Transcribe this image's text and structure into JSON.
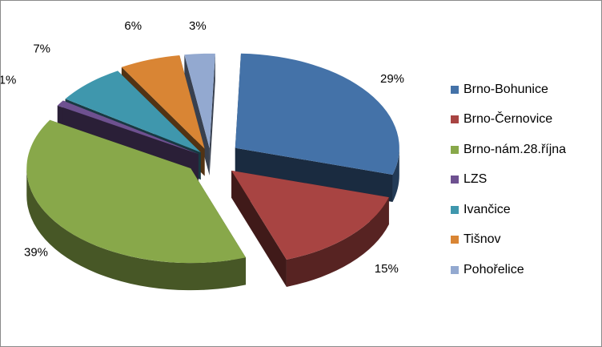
{
  "chart_data": {
    "type": "pie",
    "title": "",
    "style": "3d-exploded",
    "legend_position": "right",
    "slices": [
      {
        "name": "Brno-Bohunice",
        "value": 29,
        "label": "29%",
        "color": "#4472A8"
      },
      {
        "name": "Brno-Černovice",
        "value": 15,
        "label": "15%",
        "color": "#A84442"
      },
      {
        "name": "Brno-nám.28.října",
        "value": 39,
        "label": "39%",
        "color": "#88A84A"
      },
      {
        "name": "LZS",
        "value": 1,
        "label": "1%",
        "color": "#6E5190"
      },
      {
        "name": "Ivančice",
        "value": 7,
        "label": "7%",
        "color": "#3F97AD"
      },
      {
        "name": "Tišnov",
        "value": 6,
        "label": "6%",
        "color": "#D98534"
      },
      {
        "name": "Pohořelice",
        "value": 3,
        "label": "3%",
        "color": "#93A9D0"
      }
    ]
  }
}
